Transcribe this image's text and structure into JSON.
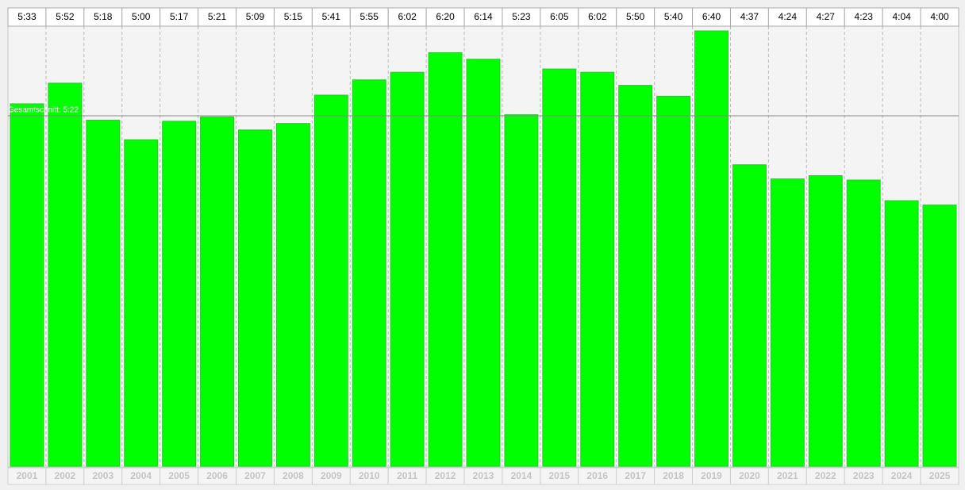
{
  "chart_data": {
    "type": "bar",
    "categories": [
      "2001",
      "2002",
      "2003",
      "2004",
      "2005",
      "2006",
      "2007",
      "2008",
      "2009",
      "2010",
      "2011",
      "2012",
      "2013",
      "2014",
      "2015",
      "2016",
      "2017",
      "2018",
      "2019",
      "2020",
      "2021",
      "2022",
      "2023",
      "2024",
      "2025"
    ],
    "values": [
      333,
      352,
      318,
      300,
      317,
      321,
      309,
      315,
      341,
      355,
      362,
      380,
      374,
      323,
      365,
      362,
      350,
      340,
      400,
      277,
      264,
      267,
      263,
      244,
      240
    ],
    "value_labels": [
      "5:33",
      "5:52",
      "5:18",
      "5:00",
      "5:17",
      "5:21",
      "5:09",
      "5:15",
      "5:41",
      "5:55",
      "6:02",
      "6:20",
      "6:14",
      "5:23",
      "6:05",
      "6:02",
      "5:50",
      "5:40",
      "6:40",
      "4:37",
      "4:24",
      "4:27",
      "4:23",
      "4:04",
      "4:00"
    ],
    "color": "#00ff00",
    "average": 322,
    "average_label": "Gesamtschnitt: 5:22"
  }
}
